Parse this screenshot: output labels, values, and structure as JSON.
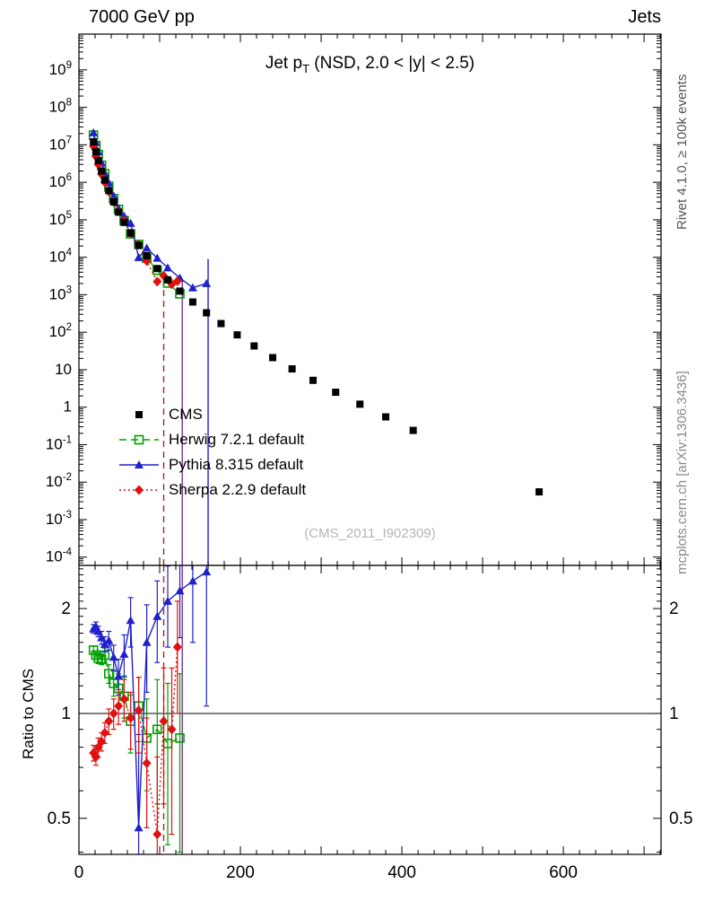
{
  "header": {
    "left": "7000 GeV pp",
    "right": "Jets"
  },
  "plot_title": {
    "prefix": "Jet p",
    "sub": "T",
    "suffix": " (NSD, 2.0 < |y| < 2.5)"
  },
  "watermark": "(CMS_2011_I902309)",
  "side_labels": {
    "top_right": "Rivet 4.1.0, ≥ 100k events",
    "bottom_right": "mcplots.cern.ch [arXiv:1306.3436]"
  },
  "chart_data": [
    {
      "type": "scatter",
      "panel": "main",
      "xscale": "linear",
      "yscale": "log",
      "xlim": [
        0,
        721
      ],
      "ylim": [
        6e-05,
        9000000000.0
      ],
      "xticks_major_step": 100,
      "xticks_minor_step": 20,
      "xtick_labels": [
        0,
        200,
        400,
        600
      ],
      "ytick_label_exponents": [
        -4,
        -3,
        -2,
        -1,
        0,
        1,
        2,
        3,
        4,
        5,
        6,
        7,
        8,
        9
      ],
      "series": [
        {
          "key": "cms",
          "name": "CMS",
          "color": "#000000",
          "marker": "square-filled",
          "line": "none",
          "x": [
            18,
            21,
            24,
            28,
            32,
            37,
            43,
            49,
            56,
            64,
            74,
            84,
            97,
            110,
            125,
            141,
            158,
            176,
            196,
            217,
            240,
            264,
            290,
            318,
            348,
            380,
            414,
            570
          ],
          "y": [
            12000000.0,
            6500000.0,
            3800000.0,
            2000000.0,
            1150000.0,
            600000.0,
            300000.0,
            160000.0,
            85000.0,
            44000.0,
            21000.0,
            11000.0,
            5000.0,
            2500.0,
            1250.0,
            640,
            330,
            170,
            85,
            43,
            21,
            10.5,
            5.2,
            2.5,
            1.2,
            0.55,
            0.24,
            0.0055
          ]
        },
        {
          "key": "herwig",
          "name": "Herwig 7.2.1 default",
          "color": "#00a000",
          "marker": "square-open",
          "line": "dashed",
          "x": [
            18,
            21,
            24,
            28,
            32,
            37,
            43,
            49,
            56,
            64,
            74,
            84,
            97,
            110,
            125
          ],
          "y": [
            18200000.0,
            9600000.0,
            5500000.0,
            2860000.0,
            1690000.0,
            780000.0,
            366000.0,
            189000.0,
            95000.0,
            42000.0,
            22000.0,
            9400.0,
            4500.0,
            2050.0,
            1060.0
          ]
        },
        {
          "key": "pythia",
          "name": "Pythia 8.315 default",
          "color": "#2020cc",
          "marker": "triangle-filled",
          "line": "solid",
          "x": [
            18,
            21,
            24,
            28,
            32,
            37,
            43,
            49,
            56,
            64,
            74,
            84,
            97,
            110,
            125,
            141,
            158
          ],
          "y": [
            21000000.0,
            11600000.0,
            6500000.0,
            3300000.0,
            1800000.0,
            970000.0,
            435000.0,
            205000.0,
            126000.0,
            81000.0,
            9900.0,
            17600.0,
            9500.0,
            5250.0,
            2800.0,
            1540.0,
            2000.0
          ]
        },
        {
          "key": "sherpa",
          "name": "Sherpa 2.2.9 default",
          "color": "#e01010",
          "marker": "diamond-filled",
          "line": "dotted",
          "x": [
            18,
            21,
            24,
            28,
            32,
            37,
            43,
            49,
            56,
            64,
            74,
            84,
            97,
            105,
            115,
            122
          ],
          "y": [
            9200000.0,
            4900000.0,
            3000000.0,
            1660000.0,
            1000000.0,
            570000.0,
            300000.0,
            168000.0,
            94000.0,
            43000.0,
            21400.0,
            7900.0,
            2250.0,
            3200.0,
            1900.0,
            2300.0
          ]
        }
      ],
      "vertical_lines": [
        {
          "x": 105,
          "color": "#993016",
          "dash": "7 5",
          "panels": [
            "main",
            "ratio"
          ],
          "ytop": 2600
        },
        {
          "x": 128,
          "color": "#803090",
          "dash": "",
          "panels": [
            "main",
            "ratio"
          ],
          "ytop": 2300
        },
        {
          "x": 160,
          "color": "#2020cc",
          "dash": "",
          "panels": [
            "main"
          ],
          "ytop": 9000
        }
      ]
    },
    {
      "type": "scatter",
      "panel": "ratio",
      "ylabel": "Ratio to CMS",
      "yscale": "log",
      "ylim": [
        0.394,
        2.66
      ],
      "yticks_labeled": [
        0.5,
        1,
        2
      ],
      "yticks_minor": [
        0.4,
        0.6,
        0.7,
        0.8,
        0.9,
        1.1,
        1.2,
        1.3,
        1.4,
        1.5,
        1.6,
        1.7,
        1.8,
        1.9,
        2.1,
        2.2,
        2.3,
        2.4,
        2.5,
        2.6
      ],
      "reference_line": 1,
      "series": [
        {
          "key": "herwig",
          "name": "Herwig 7.2.1 default",
          "color": "#00a000",
          "marker": "square-open",
          "line": "dashed",
          "x": [
            18,
            21,
            24,
            28,
            32,
            37,
            43,
            49,
            56,
            64,
            74,
            84,
            97,
            110,
            125
          ],
          "y": [
            1.52,
            1.47,
            1.44,
            1.43,
            1.47,
            1.3,
            1.22,
            1.18,
            1.12,
            0.95,
            1.05,
            0.85,
            0.9,
            0.82,
            0.85
          ],
          "err": [
            0.04,
            0.04,
            0.05,
            0.05,
            0.07,
            0.08,
            0.1,
            0.12,
            0.15,
            0.18,
            0.22,
            0.25,
            0.35,
            0.4,
            0.45
          ]
        },
        {
          "key": "pythia",
          "name": "Pythia 8.315 default",
          "color": "#2020cc",
          "marker": "triangle-filled",
          "line": "solid",
          "x": [
            18,
            21,
            24,
            28,
            32,
            37,
            43,
            49,
            56,
            64,
            74,
            84,
            97,
            110,
            125,
            141,
            158
          ],
          "y": [
            1.75,
            1.78,
            1.72,
            1.65,
            1.58,
            1.62,
            1.45,
            1.28,
            1.48,
            1.85,
            0.47,
            1.6,
            1.9,
            2.1,
            2.25,
            2.4,
            2.55
          ],
          "err": [
            0.05,
            0.05,
            0.06,
            0.07,
            0.08,
            0.1,
            0.12,
            0.15,
            0.2,
            0.3,
            0.4,
            0.45,
            0.5,
            0.55,
            0.6,
            0.8,
            1.5
          ]
        },
        {
          "key": "sherpa",
          "name": "Sherpa 2.2.9 default",
          "color": "#e01010",
          "marker": "diamond-filled",
          "line": "dotted",
          "x": [
            18,
            21,
            24,
            28,
            32,
            37,
            43,
            49,
            56,
            64,
            74,
            84,
            97,
            105,
            115,
            122
          ],
          "y": [
            0.77,
            0.75,
            0.8,
            0.83,
            0.88,
            0.95,
            1.0,
            1.05,
            1.1,
            0.97,
            1.02,
            0.72,
            0.45,
            0.95,
            0.9,
            1.55
          ],
          "err": [
            0.04,
            0.04,
            0.05,
            0.05,
            0.06,
            0.08,
            0.1,
            0.12,
            0.15,
            0.18,
            0.25,
            0.25,
            0.3,
            0.4,
            0.45,
            0.55
          ]
        }
      ]
    }
  ]
}
